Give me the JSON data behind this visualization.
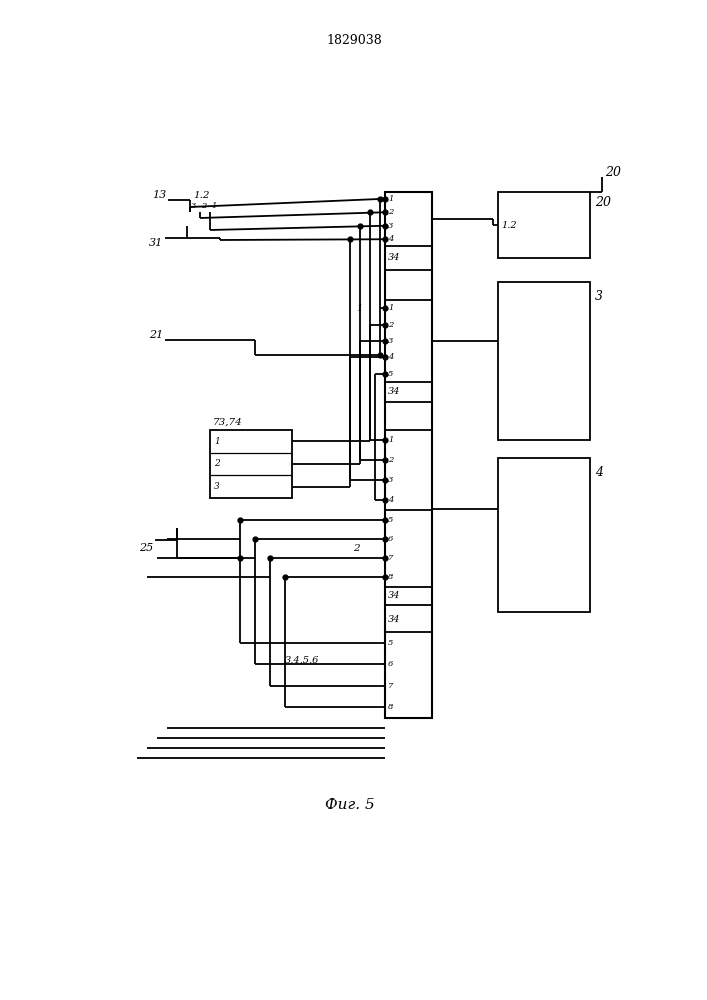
{
  "title": "1829038",
  "caption": "Фиг. 5",
  "bg_color": "#ffffff",
  "line_color": "#000000",
  "figsize": [
    7.07,
    10.0
  ],
  "dpi": 100
}
